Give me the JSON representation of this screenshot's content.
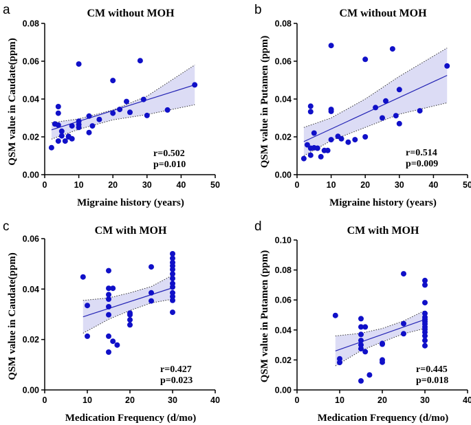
{
  "chart_data": [
    {
      "type": "scatter",
      "panel_label": "a",
      "title": "CM without MOH",
      "xlabel": "Migraine history (years)",
      "ylabel": "QSM value in Caudate(ppm)",
      "xlim": [
        0,
        50
      ],
      "ylim": [
        0,
        0.08
      ],
      "xticks": [
        "0",
        "10",
        "20",
        "30",
        "40",
        "50"
      ],
      "yticks": [
        "0.00",
        "0.02",
        "0.04",
        "0.06",
        "0.08"
      ],
      "r_text": "r=0.502",
      "p_text": "p=0.010",
      "fit": {
        "x": [
          2,
          44
        ],
        "y": [
          0.0237,
          0.0475
        ]
      },
      "band": {
        "x": [
          2,
          10,
          20,
          30,
          44
        ],
        "upper": [
          0.0275,
          0.0295,
          0.0342,
          0.0415,
          0.058
        ],
        "lower": [
          0.0188,
          0.024,
          0.029,
          0.0318,
          0.037
        ]
      },
      "points": [
        [
          2,
          0.0143
        ],
        [
          3,
          0.0268
        ],
        [
          4,
          0.0262
        ],
        [
          4,
          0.0178
        ],
        [
          4,
          0.0325
        ],
        [
          4,
          0.036
        ],
        [
          5,
          0.0205
        ],
        [
          5,
          0.023
        ],
        [
          6,
          0.0178
        ],
        [
          7,
          0.0203
        ],
        [
          7,
          0.02
        ],
        [
          8,
          0.019
        ],
        [
          8,
          0.0258
        ],
        [
          10,
          0.0265
        ],
        [
          10,
          0.025
        ],
        [
          10,
          0.0283
        ],
        [
          10,
          0.0585
        ],
        [
          13,
          0.0223
        ],
        [
          13,
          0.031
        ],
        [
          14,
          0.0258
        ],
        [
          16,
          0.0292
        ],
        [
          20,
          0.0325
        ],
        [
          20,
          0.0498
        ],
        [
          22,
          0.0345
        ],
        [
          24,
          0.0387
        ],
        [
          25,
          0.033
        ],
        [
          28,
          0.0603
        ],
        [
          29,
          0.0398
        ],
        [
          30,
          0.0313
        ],
        [
          36,
          0.0342
        ],
        [
          44,
          0.0475
        ]
      ]
    },
    {
      "type": "scatter",
      "panel_label": "b",
      "title": "CM without MOH",
      "xlabel": "Migraine history (years)",
      "ylabel": "QSM value in Putamen (ppm)",
      "xlim": [
        0,
        50
      ],
      "ylim": [
        0,
        0.08
      ],
      "xticks": [
        "0",
        "10",
        "20",
        "30",
        "40",
        "50"
      ],
      "yticks": [
        "0.00",
        "0.02",
        "0.04",
        "0.06",
        "0.08"
      ],
      "r_text": "r=0.514",
      "p_text": "p=0.009",
      "fit": {
        "x": [
          2,
          44
        ],
        "y": [
          0.0175,
          0.0525
        ]
      },
      "band": {
        "x": [
          2,
          10,
          20,
          30,
          44
        ],
        "upper": [
          0.025,
          0.03,
          0.04,
          0.052,
          0.067
        ],
        "lower": [
          0.01,
          0.018,
          0.025,
          0.032,
          0.038
        ]
      },
      "points": [
        [
          2,
          0.0085
        ],
        [
          3,
          0.0158
        ],
        [
          4,
          0.0103
        ],
        [
          4,
          0.0333
        ],
        [
          4,
          0.0362
        ],
        [
          4,
          0.014
        ],
        [
          5,
          0.0142
        ],
        [
          5,
          0.022
        ],
        [
          6,
          0.014
        ],
        [
          7,
          0.0095
        ],
        [
          8,
          0.0128
        ],
        [
          9,
          0.0128
        ],
        [
          10,
          0.0345
        ],
        [
          10,
          0.0335
        ],
        [
          10,
          0.0185
        ],
        [
          10,
          0.0683
        ],
        [
          12,
          0.0203
        ],
        [
          13,
          0.019
        ],
        [
          15,
          0.0172
        ],
        [
          17,
          0.0185
        ],
        [
          20,
          0.02
        ],
        [
          20,
          0.061
        ],
        [
          23,
          0.0355
        ],
        [
          25,
          0.03
        ],
        [
          26,
          0.039
        ],
        [
          28,
          0.0665
        ],
        [
          29,
          0.0312
        ],
        [
          30,
          0.027
        ],
        [
          30,
          0.045
        ],
        [
          36,
          0.0338
        ],
        [
          44,
          0.0575
        ]
      ]
    },
    {
      "type": "scatter",
      "panel_label": "c",
      "title": "CM with MOH",
      "xlabel": "Medication Frequency (d/mo)",
      "ylabel": "QSM value in Caudate(ppm)",
      "xlim": [
        0,
        40
      ],
      "ylim": [
        0,
        0.06
      ],
      "xticks": [
        "0",
        "10",
        "20",
        "30",
        "40"
      ],
      "yticks": [
        "0.00",
        "0.02",
        "0.04",
        "0.06"
      ],
      "r_text": "r=0.427",
      "p_text": "p=0.023",
      "fit": {
        "x": [
          9,
          30
        ],
        "y": [
          0.029,
          0.0405
        ]
      },
      "band": {
        "x": [
          9,
          15,
          20,
          25,
          30
        ],
        "upper": [
          0.0355,
          0.0365,
          0.0385,
          0.041,
          0.0455
        ],
        "lower": [
          0.0225,
          0.028,
          0.0315,
          0.0345,
          0.036
        ]
      },
      "points": [
        [
          9,
          0.0448
        ],
        [
          10,
          0.0335
        ],
        [
          10,
          0.0213
        ],
        [
          15,
          0.0473
        ],
        [
          15,
          0.0403
        ],
        [
          15,
          0.0378
        ],
        [
          15,
          0.036
        ],
        [
          15,
          0.033
        ],
        [
          15,
          0.0298
        ],
        [
          15,
          0.0213
        ],
        [
          15,
          0.015
        ],
        [
          16,
          0.0403
        ],
        [
          16,
          0.0193
        ],
        [
          17,
          0.0178
        ],
        [
          20,
          0.0305
        ],
        [
          20,
          0.0298
        ],
        [
          20,
          0.0278
        ],
        [
          20,
          0.0258
        ],
        [
          25,
          0.0488
        ],
        [
          25,
          0.0385
        ],
        [
          25,
          0.0353
        ],
        [
          30,
          0.054
        ],
        [
          30,
          0.0522
        ],
        [
          30,
          0.0505
        ],
        [
          30,
          0.0492
        ],
        [
          30,
          0.0478
        ],
        [
          30,
          0.046
        ],
        [
          30,
          0.0442
        ],
        [
          30,
          0.0422
        ],
        [
          30,
          0.0408
        ],
        [
          30,
          0.0385
        ],
        [
          30,
          0.037
        ],
        [
          30,
          0.0355
        ],
        [
          30,
          0.0308
        ]
      ]
    },
    {
      "type": "scatter",
      "panel_label": "d",
      "title": "CM with MOH",
      "xlabel": "Medication Frequency (d/mo)",
      "ylabel": "QSM value in Putamen (ppm)",
      "xlim": [
        0,
        40
      ],
      "ylim": [
        0,
        0.1
      ],
      "xticks": [
        "0",
        "10",
        "20",
        "30",
        "40"
      ],
      "yticks": [
        "0.00",
        "0.02",
        "0.04",
        "0.06",
        "0.08",
        "0.10"
      ],
      "r_text": "r=0.445",
      "p_text": "p=0.018",
      "fit": {
        "x": [
          9,
          30
        ],
        "y": [
          0.026,
          0.047
        ]
      },
      "band": {
        "x": [
          9,
          15,
          20,
          25,
          30
        ],
        "upper": [
          0.036,
          0.0378,
          0.041,
          0.046,
          0.053
        ],
        "lower": [
          0.016,
          0.0262,
          0.032,
          0.0375,
          0.041
        ]
      },
      "points": [
        [
          9,
          0.0497
        ],
        [
          10,
          0.0208
        ],
        [
          10,
          0.0183
        ],
        [
          15,
          0.0475
        ],
        [
          15,
          0.042
        ],
        [
          15,
          0.037
        ],
        [
          15,
          0.033
        ],
        [
          15,
          0.03
        ],
        [
          15,
          0.0275
        ],
        [
          15,
          0.006
        ],
        [
          16,
          0.042
        ],
        [
          16,
          0.0255
        ],
        [
          17,
          0.01
        ],
        [
          20,
          0.031
        ],
        [
          20,
          0.0305
        ],
        [
          20,
          0.02
        ],
        [
          20,
          0.0185
        ],
        [
          25,
          0.0775
        ],
        [
          25,
          0.0442
        ],
        [
          25,
          0.0375
        ],
        [
          30,
          0.073
        ],
        [
          30,
          0.07
        ],
        [
          30,
          0.0582
        ],
        [
          30,
          0.051
        ],
        [
          30,
          0.0485
        ],
        [
          30,
          0.047
        ],
        [
          30,
          0.0455
        ],
        [
          30,
          0.044
        ],
        [
          30,
          0.042
        ],
        [
          30,
          0.0405
        ],
        [
          30,
          0.0385
        ],
        [
          30,
          0.036
        ],
        [
          30,
          0.033
        ],
        [
          30,
          0.0295
        ]
      ]
    }
  ]
}
